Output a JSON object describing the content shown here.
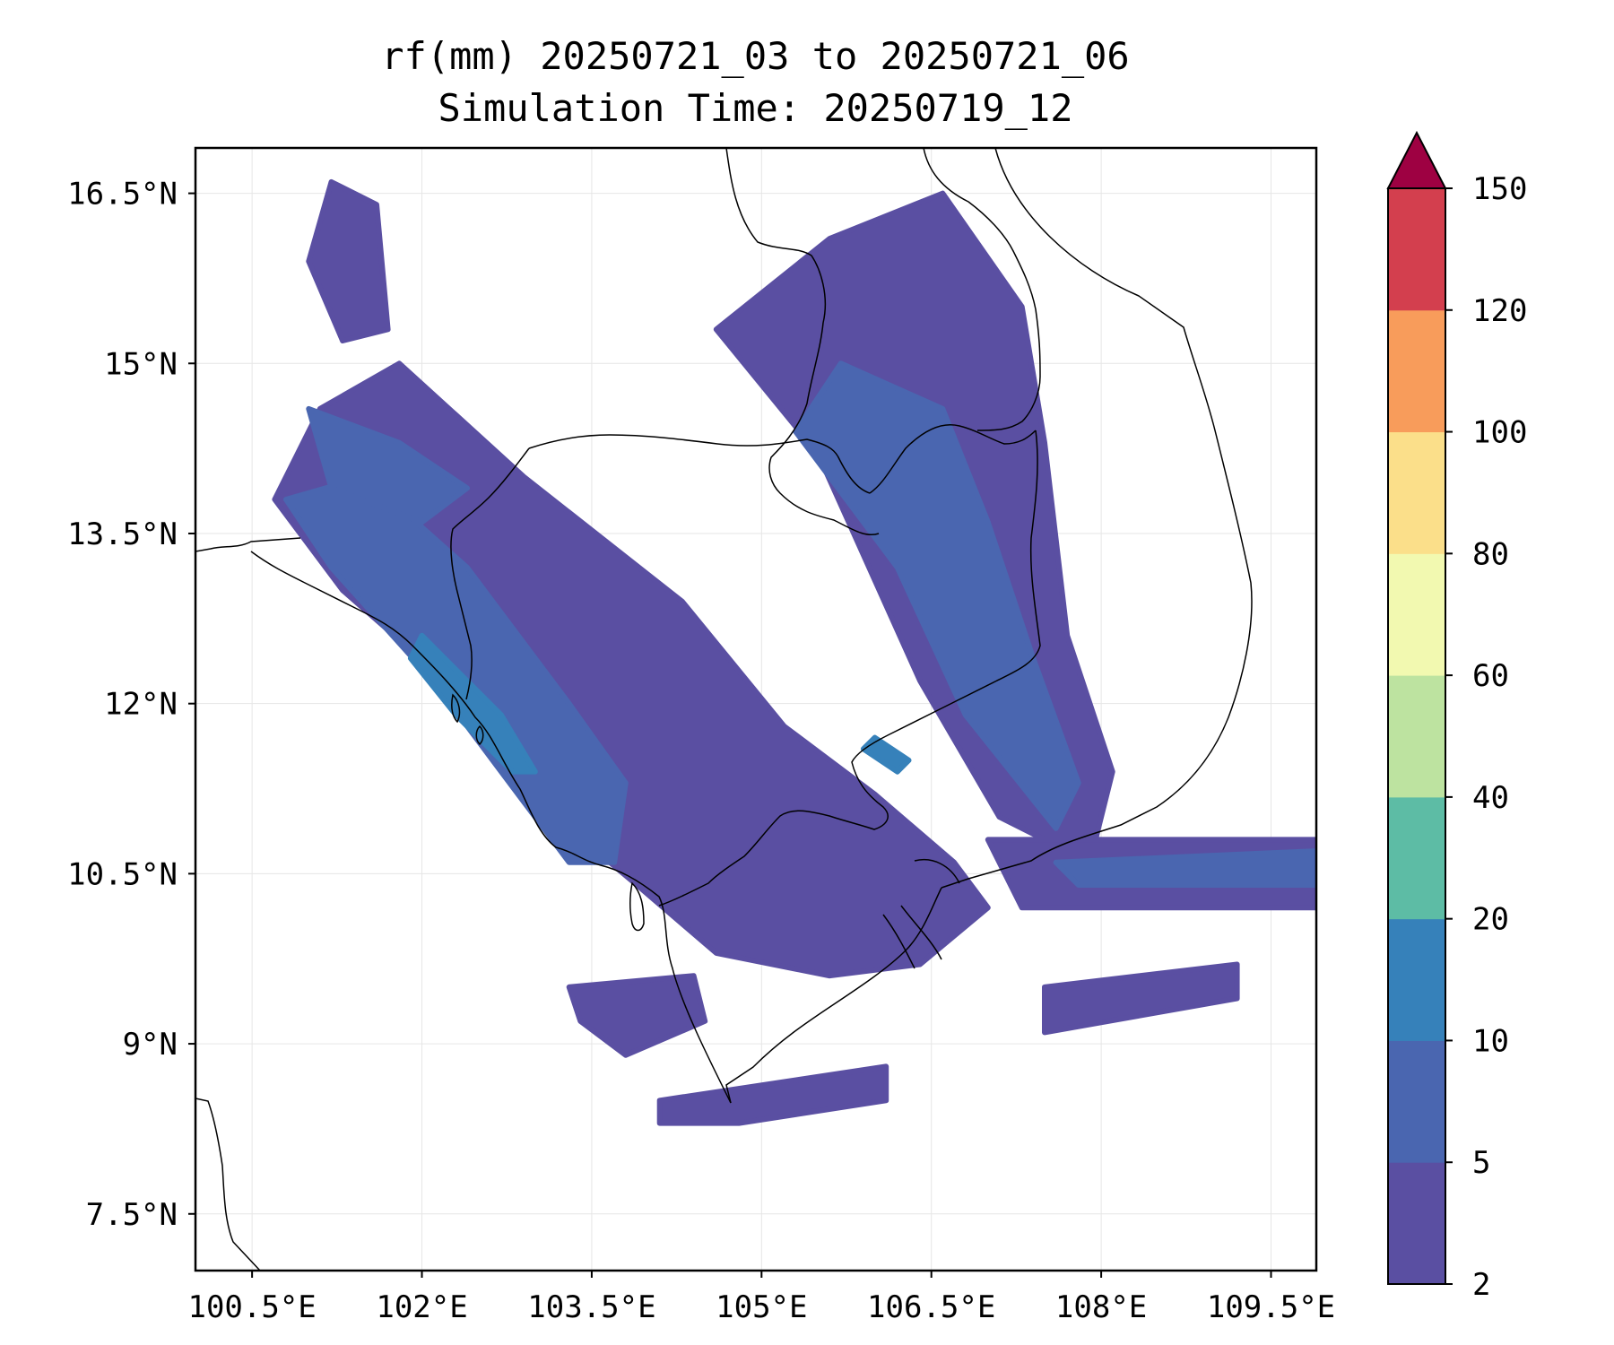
{
  "title": {
    "line1": "rf(mm) 20250721_03 to 20250721_06",
    "line2": "Simulation Time: 20250719_12"
  },
  "axes": {
    "x_ticks": [
      {
        "value": 100.5,
        "label": "100.5°E"
      },
      {
        "value": 102.0,
        "label": "102°E"
      },
      {
        "value": 103.5,
        "label": "103.5°E"
      },
      {
        "value": 105.0,
        "label": "105°E"
      },
      {
        "value": 106.5,
        "label": "106.5°E"
      },
      {
        "value": 108.0,
        "label": "108°E"
      },
      {
        "value": 109.5,
        "label": "109.5°E"
      }
    ],
    "y_ticks": [
      {
        "value": 16.5,
        "label": "16.5°N"
      },
      {
        "value": 15.0,
        "label": "15°N"
      },
      {
        "value": 13.5,
        "label": "13.5°N"
      },
      {
        "value": 12.0,
        "label": "12°N"
      },
      {
        "value": 10.5,
        "label": "10.5°N"
      },
      {
        "value": 9.0,
        "label": "9°N"
      },
      {
        "value": 7.5,
        "label": "7.5°N"
      }
    ],
    "lon_range": [
      100.0,
      109.9
    ],
    "lat_range": [
      7.0,
      16.9
    ],
    "grid": true
  },
  "colorbar": {
    "levels": [
      {
        "label": "2",
        "value": 2
      },
      {
        "label": "5",
        "value": 5
      },
      {
        "label": "10",
        "value": 10
      },
      {
        "label": "20",
        "value": 20
      },
      {
        "label": "40",
        "value": 40
      },
      {
        "label": "60",
        "value": 60
      },
      {
        "label": "80",
        "value": 80
      },
      {
        "label": "100",
        "value": 100
      },
      {
        "label": "120",
        "value": 120
      },
      {
        "label": "150",
        "value": 150
      }
    ],
    "colors": [
      "#5a4fa2",
      "#4a66b0",
      "#3681ba",
      "#5dbca5",
      "#bde3a0",
      "#f2f9b0",
      "#fbdf8a",
      "#f89c5b",
      "#d33f4e"
    ],
    "extend_color": "#9e0142"
  },
  "rain_regions": [
    {
      "level": 0,
      "points": [
        [
          101.8,
          15.0
        ],
        [
          102.9,
          14.0
        ],
        [
          104.3,
          12.9
        ],
        [
          105.2,
          11.8
        ],
        [
          106.0,
          11.2
        ],
        [
          106.7,
          10.6
        ],
        [
          107.0,
          10.2
        ],
        [
          106.4,
          9.7
        ],
        [
          105.6,
          9.6
        ],
        [
          104.6,
          9.8
        ],
        [
          103.9,
          10.4
        ],
        [
          103.3,
          10.9
        ],
        [
          102.8,
          11.6
        ],
        [
          102.1,
          12.3
        ],
        [
          101.3,
          13.0
        ],
        [
          100.7,
          13.8
        ],
        [
          101.1,
          14.6
        ]
      ]
    },
    {
      "level": 0,
      "points": [
        [
          104.6,
          15.3
        ],
        [
          105.5,
          14.2
        ],
        [
          106.4,
          12.2
        ],
        [
          107.1,
          11.0
        ],
        [
          107.9,
          10.6
        ],
        [
          108.1,
          11.4
        ],
        [
          107.7,
          12.6
        ],
        [
          107.5,
          14.3
        ],
        [
          107.3,
          15.5
        ],
        [
          106.6,
          16.5
        ],
        [
          105.6,
          16.1
        ]
      ]
    },
    {
      "level": 0,
      "points": [
        [
          101.2,
          16.6
        ],
        [
          101.6,
          16.4
        ],
        [
          101.7,
          15.3
        ],
        [
          101.3,
          15.2
        ],
        [
          101.0,
          15.9
        ]
      ]
    },
    {
      "level": 0,
      "points": [
        [
          107.0,
          10.8
        ],
        [
          109.9,
          10.8
        ],
        [
          109.9,
          10.2
        ],
        [
          107.3,
          10.2
        ]
      ]
    },
    {
      "level": 0,
      "points": [
        [
          107.5,
          9.5
        ],
        [
          109.2,
          9.7
        ],
        [
          109.2,
          9.4
        ],
        [
          107.5,
          9.1
        ]
      ]
    },
    {
      "level": 0,
      "points": [
        [
          103.3,
          9.5
        ],
        [
          104.4,
          9.6
        ],
        [
          104.5,
          9.2
        ],
        [
          103.8,
          8.9
        ],
        [
          103.4,
          9.2
        ]
      ]
    },
    {
      "level": 0,
      "points": [
        [
          104.1,
          8.5
        ],
        [
          106.1,
          8.8
        ],
        [
          106.1,
          8.5
        ],
        [
          104.8,
          8.3
        ],
        [
          104.1,
          8.3
        ]
      ]
    },
    {
      "level": 1,
      "points": [
        [
          101.5,
          14.0
        ],
        [
          102.4,
          13.2
        ],
        [
          103.3,
          12.0
        ],
        [
          103.8,
          11.3
        ],
        [
          103.7,
          10.6
        ],
        [
          103.3,
          10.6
        ],
        [
          102.7,
          11.4
        ],
        [
          102.1,
          12.2
        ],
        [
          101.2,
          13.2
        ],
        [
          100.8,
          13.8
        ]
      ]
    },
    {
      "level": 1,
      "points": [
        [
          105.3,
          14.4
        ],
        [
          106.2,
          13.2
        ],
        [
          106.8,
          11.9
        ],
        [
          107.6,
          10.9
        ],
        [
          107.8,
          11.3
        ],
        [
          107.4,
          12.4
        ],
        [
          107.0,
          13.6
        ],
        [
          106.6,
          14.6
        ],
        [
          105.7,
          15.0
        ]
      ]
    },
    {
      "level": 1,
      "points": [
        [
          101.0,
          14.6
        ],
        [
          101.8,
          14.3
        ],
        [
          102.4,
          13.9
        ],
        [
          102.0,
          13.6
        ],
        [
          101.2,
          13.9
        ]
      ]
    },
    {
      "level": 1,
      "points": [
        [
          107.6,
          10.6
        ],
        [
          109.9,
          10.7
        ],
        [
          109.9,
          10.4
        ],
        [
          107.8,
          10.4
        ]
      ]
    },
    {
      "level": 2,
      "points": [
        [
          102.0,
          12.6
        ],
        [
          102.7,
          11.9
        ],
        [
          103.0,
          11.4
        ],
        [
          102.8,
          11.4
        ],
        [
          102.3,
          11.9
        ],
        [
          101.9,
          12.4
        ]
      ]
    },
    {
      "level": 2,
      "points": [
        [
          106.0,
          11.7
        ],
        [
          106.3,
          11.5
        ],
        [
          106.2,
          11.4
        ],
        [
          105.9,
          11.6
        ]
      ]
    }
  ]
}
